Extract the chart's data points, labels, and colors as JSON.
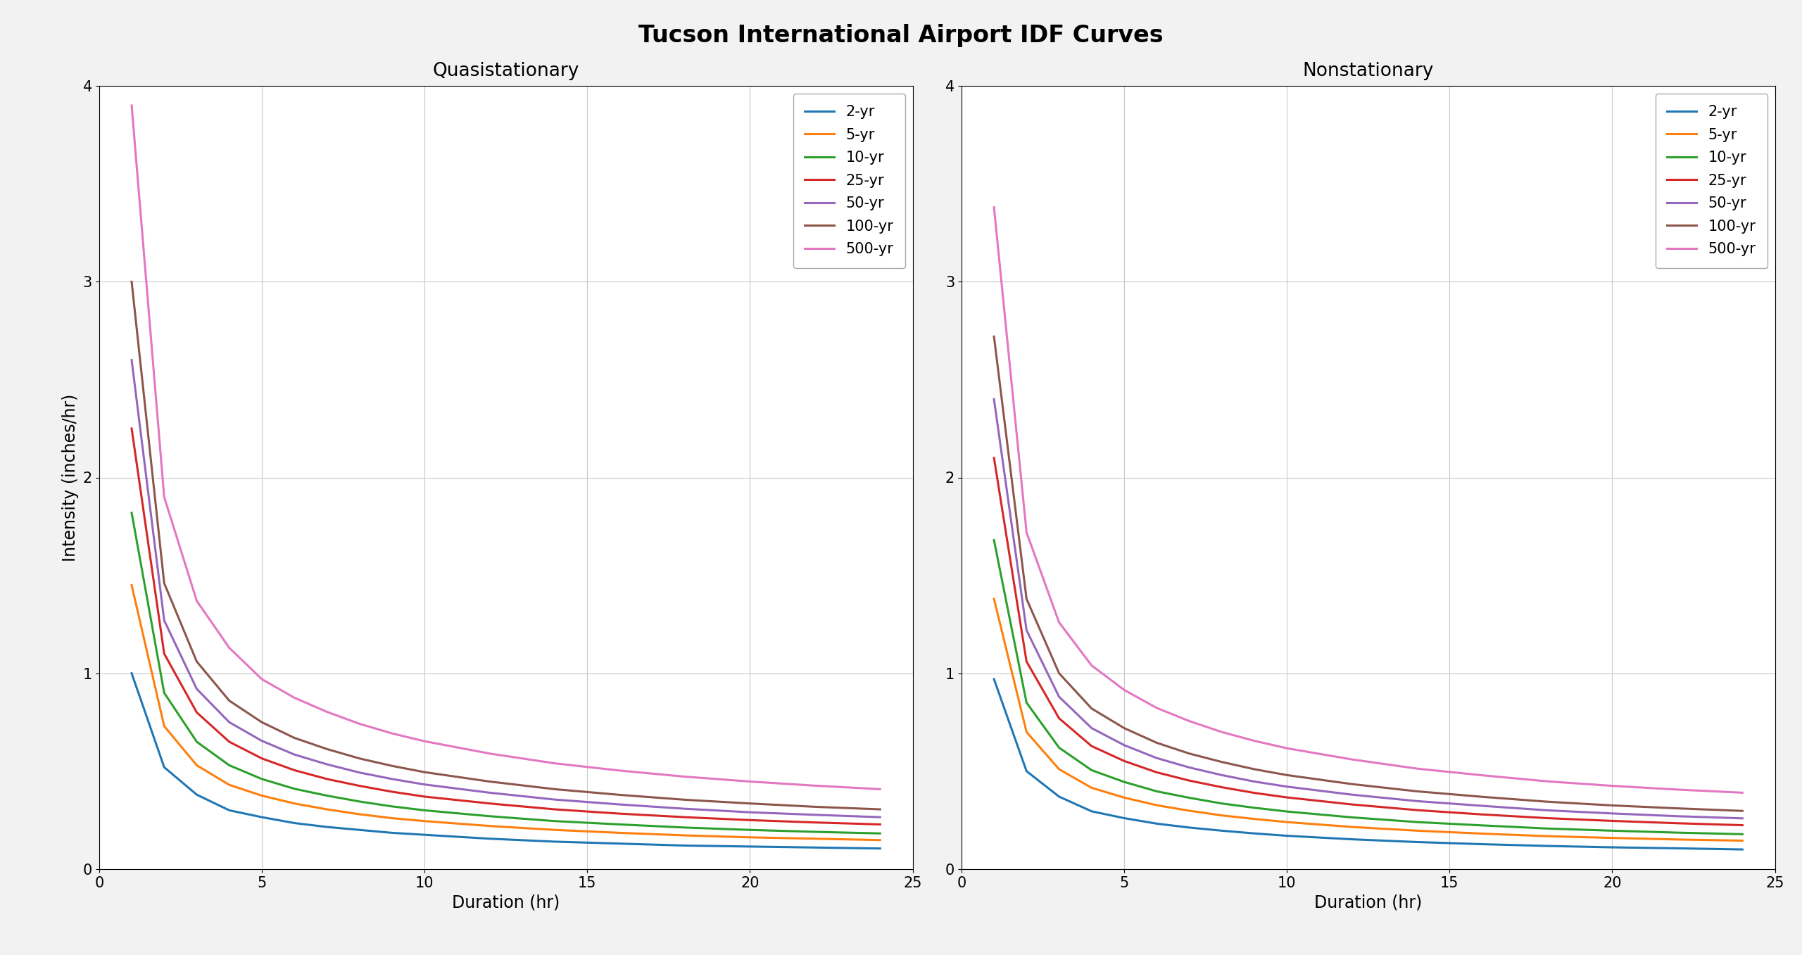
{
  "title": "Tucson International Airport IDF Curves",
  "subplot_titles": [
    "Quasistationary",
    "Nonstationary"
  ],
  "xlabel": "Duration (hr)",
  "ylabel": "Intensity (inches/hr)",
  "xlim": [
    0,
    25
  ],
  "ylim": [
    0,
    4
  ],
  "return_periods": [
    "2-yr",
    "5-yr",
    "10-yr",
    "25-yr",
    "50-yr",
    "100-yr",
    "500-yr"
  ],
  "colors": [
    "#1f77b4",
    "#ff7f0e",
    "#2ca02c",
    "#d62728",
    "#9467bd",
    "#8c564b",
    "#e377c2"
  ],
  "qs_data": {
    "durations": [
      1.0,
      2.0,
      3.0,
      4.0,
      5.0,
      6.0,
      7.0,
      8.0,
      9.0,
      10.0,
      12.0,
      14.0,
      16.0,
      18.0,
      20.0,
      22.0,
      24.0
    ],
    "2yr": [
      1.0,
      0.52,
      0.38,
      0.3,
      0.265,
      0.235,
      0.215,
      0.2,
      0.185,
      0.175,
      0.155,
      0.14,
      0.13,
      0.12,
      0.115,
      0.11,
      0.105
    ],
    "5yr": [
      1.45,
      0.73,
      0.53,
      0.43,
      0.375,
      0.335,
      0.305,
      0.28,
      0.26,
      0.245,
      0.22,
      0.2,
      0.185,
      0.172,
      0.162,
      0.155,
      0.148
    ],
    "10yr": [
      1.82,
      0.9,
      0.65,
      0.53,
      0.46,
      0.41,
      0.375,
      0.345,
      0.32,
      0.3,
      0.27,
      0.245,
      0.228,
      0.212,
      0.2,
      0.19,
      0.182
    ],
    "25yr": [
      2.25,
      1.1,
      0.8,
      0.65,
      0.565,
      0.505,
      0.46,
      0.425,
      0.395,
      0.37,
      0.335,
      0.305,
      0.283,
      0.265,
      0.25,
      0.238,
      0.228
    ],
    "50yr": [
      2.6,
      1.27,
      0.92,
      0.75,
      0.655,
      0.585,
      0.535,
      0.493,
      0.46,
      0.432,
      0.39,
      0.355,
      0.33,
      0.308,
      0.29,
      0.277,
      0.265
    ],
    "100yr": [
      3.0,
      1.46,
      1.06,
      0.86,
      0.75,
      0.67,
      0.613,
      0.565,
      0.527,
      0.495,
      0.447,
      0.408,
      0.379,
      0.354,
      0.335,
      0.318,
      0.305
    ],
    "500yr": [
      3.9,
      1.9,
      1.37,
      1.13,
      0.97,
      0.875,
      0.803,
      0.742,
      0.693,
      0.653,
      0.59,
      0.54,
      0.503,
      0.472,
      0.447,
      0.426,
      0.408
    ]
  },
  "ns_data": {
    "durations": [
      1.0,
      2.0,
      3.0,
      4.0,
      5.0,
      6.0,
      7.0,
      8.0,
      9.0,
      10.0,
      12.0,
      14.0,
      16.0,
      18.0,
      20.0,
      22.0,
      24.0
    ],
    "2yr": [
      0.97,
      0.5,
      0.37,
      0.295,
      0.26,
      0.232,
      0.212,
      0.196,
      0.182,
      0.17,
      0.152,
      0.138,
      0.127,
      0.118,
      0.111,
      0.106,
      0.1
    ],
    "5yr": [
      1.38,
      0.7,
      0.51,
      0.415,
      0.365,
      0.326,
      0.298,
      0.274,
      0.256,
      0.24,
      0.215,
      0.196,
      0.181,
      0.168,
      0.159,
      0.151,
      0.145
    ],
    "10yr": [
      1.68,
      0.85,
      0.62,
      0.505,
      0.445,
      0.397,
      0.364,
      0.335,
      0.313,
      0.294,
      0.264,
      0.24,
      0.223,
      0.207,
      0.196,
      0.186,
      0.178
    ],
    "25yr": [
      2.1,
      1.06,
      0.77,
      0.628,
      0.552,
      0.494,
      0.452,
      0.418,
      0.389,
      0.366,
      0.33,
      0.301,
      0.279,
      0.26,
      0.246,
      0.234,
      0.224
    ],
    "50yr": [
      2.4,
      1.22,
      0.88,
      0.72,
      0.633,
      0.567,
      0.519,
      0.48,
      0.447,
      0.421,
      0.38,
      0.347,
      0.323,
      0.3,
      0.284,
      0.27,
      0.259
    ],
    "100yr": [
      2.72,
      1.38,
      1.0,
      0.82,
      0.72,
      0.645,
      0.59,
      0.547,
      0.51,
      0.48,
      0.434,
      0.397,
      0.369,
      0.344,
      0.325,
      0.31,
      0.297
    ],
    "500yr": [
      3.38,
      1.72,
      1.26,
      1.04,
      0.915,
      0.823,
      0.756,
      0.7,
      0.655,
      0.617,
      0.56,
      0.513,
      0.479,
      0.448,
      0.425,
      0.406,
      0.39
    ]
  },
  "title_fontsize": 24,
  "subtitle_fontsize": 19,
  "label_fontsize": 17,
  "tick_fontsize": 15,
  "legend_fontsize": 15,
  "linewidth": 2.2,
  "background_color": "#f2f2f2",
  "plot_background": "#ffffff"
}
